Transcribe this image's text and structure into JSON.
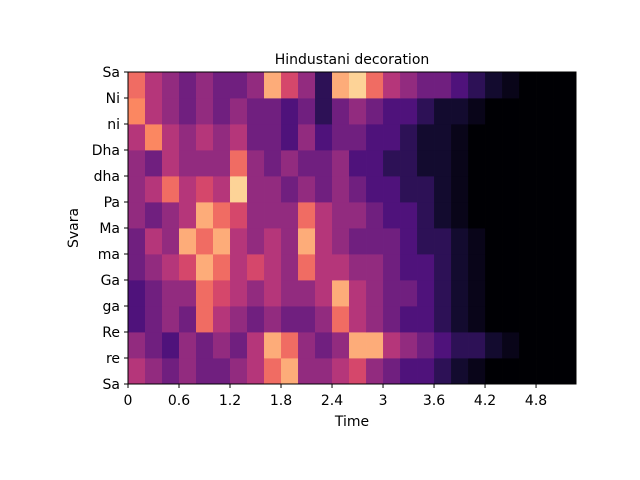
{
  "chart_data": {
    "type": "heatmap",
    "title": "Hindustani decoration",
    "xlabel": "Time",
    "ylabel": "Svara",
    "xlim": [
      0,
      5.27
    ],
    "x_ticks": [
      "0",
      "0.6",
      "1.2",
      "1.8",
      "2.4",
      "3",
      "3.6",
      "4.2",
      "4.8"
    ],
    "x_tick_values": [
      0,
      0.6,
      1.2,
      1.8,
      2.4,
      3.0,
      3.6,
      4.2,
      4.8
    ],
    "y_ticks": [
      "Sa",
      "re",
      "Re",
      "ga",
      "Ga",
      "ma",
      "Ma",
      "Pa",
      "dha",
      "Dha",
      "ni",
      "Ni",
      "Sa"
    ],
    "colormap": "magma",
    "value_range": [
      0,
      1
    ],
    "notes_bottom_to_top": [
      "Sa",
      "re",
      "Re",
      "ga",
      "Ga",
      "ma",
      "Ma",
      "Pa",
      "dha",
      "Dha",
      "ni",
      "Ni"
    ],
    "time_frames": [
      0,
      0.2,
      0.4,
      0.6,
      0.8,
      1.0,
      1.2,
      1.4,
      1.6,
      1.8,
      2.0,
      2.2,
      2.4,
      2.6,
      2.8,
      3.0,
      3.2,
      3.4,
      3.6,
      3.8,
      4.0,
      4.2,
      4.4,
      4.6,
      4.8,
      5.0
    ],
    "values": {
      "Sa": [
        0.6,
        0.5,
        0.4,
        0.5,
        0.4,
        0.4,
        0.5,
        0.6,
        0.8,
        0.9,
        0.5,
        0.5,
        0.6,
        0.7,
        0.5,
        0.4,
        0.3,
        0.3,
        0.2,
        0.1,
        0.05,
        0,
        0,
        0,
        0,
        0
      ],
      "re": [
        0.5,
        0.4,
        0.3,
        0.5,
        0.4,
        0.5,
        0.4,
        0.6,
        0.9,
        0.8,
        0.5,
        0.4,
        0.5,
        0.9,
        0.9,
        0.6,
        0.5,
        0.4,
        0.3,
        0.2,
        0.2,
        0.1,
        0.05,
        0,
        0,
        0
      ],
      "Re": [
        0.3,
        0.4,
        0.5,
        0.4,
        0.8,
        0.6,
        0.5,
        0.4,
        0.5,
        0.4,
        0.4,
        0.5,
        0.8,
        0.6,
        0.5,
        0.4,
        0.3,
        0.3,
        0.2,
        0.1,
        0.05,
        0,
        0,
        0,
        0,
        0
      ],
      "ga": [
        0.3,
        0.4,
        0.5,
        0.5,
        0.8,
        0.7,
        0.6,
        0.5,
        0.6,
        0.5,
        0.5,
        0.6,
        0.9,
        0.6,
        0.5,
        0.4,
        0.4,
        0.3,
        0.2,
        0.1,
        0.05,
        0,
        0,
        0,
        0,
        0
      ],
      "Ga": [
        0.4,
        0.5,
        0.6,
        0.7,
        0.9,
        0.8,
        0.6,
        0.7,
        0.6,
        0.5,
        0.8,
        0.6,
        0.6,
        0.5,
        0.5,
        0.4,
        0.3,
        0.3,
        0.2,
        0.1,
        0.05,
        0,
        0,
        0,
        0,
        0
      ],
      "ma": [
        0.4,
        0.6,
        0.5,
        0.9,
        0.8,
        0.9,
        0.6,
        0.5,
        0.6,
        0.5,
        0.9,
        0.6,
        0.5,
        0.4,
        0.4,
        0.4,
        0.3,
        0.2,
        0.2,
        0.1,
        0.05,
        0,
        0,
        0,
        0,
        0
      ],
      "Ma": [
        0.5,
        0.4,
        0.5,
        0.6,
        0.9,
        0.8,
        0.7,
        0.5,
        0.5,
        0.5,
        0.8,
        0.6,
        0.5,
        0.5,
        0.4,
        0.3,
        0.3,
        0.2,
        0.1,
        0.05,
        0,
        0,
        0,
        0,
        0,
        0
      ],
      "Pa": [
        0.5,
        0.6,
        0.8,
        0.6,
        0.7,
        0.6,
        0.95,
        0.5,
        0.5,
        0.4,
        0.5,
        0.4,
        0.5,
        0.4,
        0.3,
        0.3,
        0.2,
        0.2,
        0.1,
        0.05,
        0,
        0,
        0,
        0,
        0,
        0
      ],
      "dha": [
        0.5,
        0.4,
        0.6,
        0.5,
        0.5,
        0.5,
        0.8,
        0.5,
        0.4,
        0.5,
        0.4,
        0.4,
        0.5,
        0.3,
        0.3,
        0.2,
        0.2,
        0.1,
        0.1,
        0.05,
        0,
        0,
        0,
        0,
        0,
        0
      ],
      "Dha": [
        0.6,
        0.85,
        0.6,
        0.5,
        0.6,
        0.5,
        0.6,
        0.4,
        0.4,
        0.3,
        0.5,
        0.3,
        0.4,
        0.4,
        0.3,
        0.3,
        0.2,
        0.1,
        0.1,
        0.05,
        0,
        0,
        0,
        0,
        0,
        0
      ],
      "ni": [
        0.85,
        0.6,
        0.5,
        0.4,
        0.5,
        0.4,
        0.5,
        0.4,
        0.4,
        0.3,
        0.4,
        0.2,
        0.4,
        0.5,
        0.4,
        0.3,
        0.3,
        0.2,
        0.1,
        0.1,
        0.05,
        0,
        0,
        0,
        0,
        0
      ],
      "Ni": [
        0.8,
        0.6,
        0.5,
        0.4,
        0.5,
        0.4,
        0.4,
        0.5,
        0.9,
        0.7,
        0.5,
        0.2,
        0.9,
        0.95,
        0.8,
        0.6,
        0.5,
        0.4,
        0.4,
        0.3,
        0.2,
        0.1,
        0.05,
        0,
        0,
        0
      ]
    }
  }
}
